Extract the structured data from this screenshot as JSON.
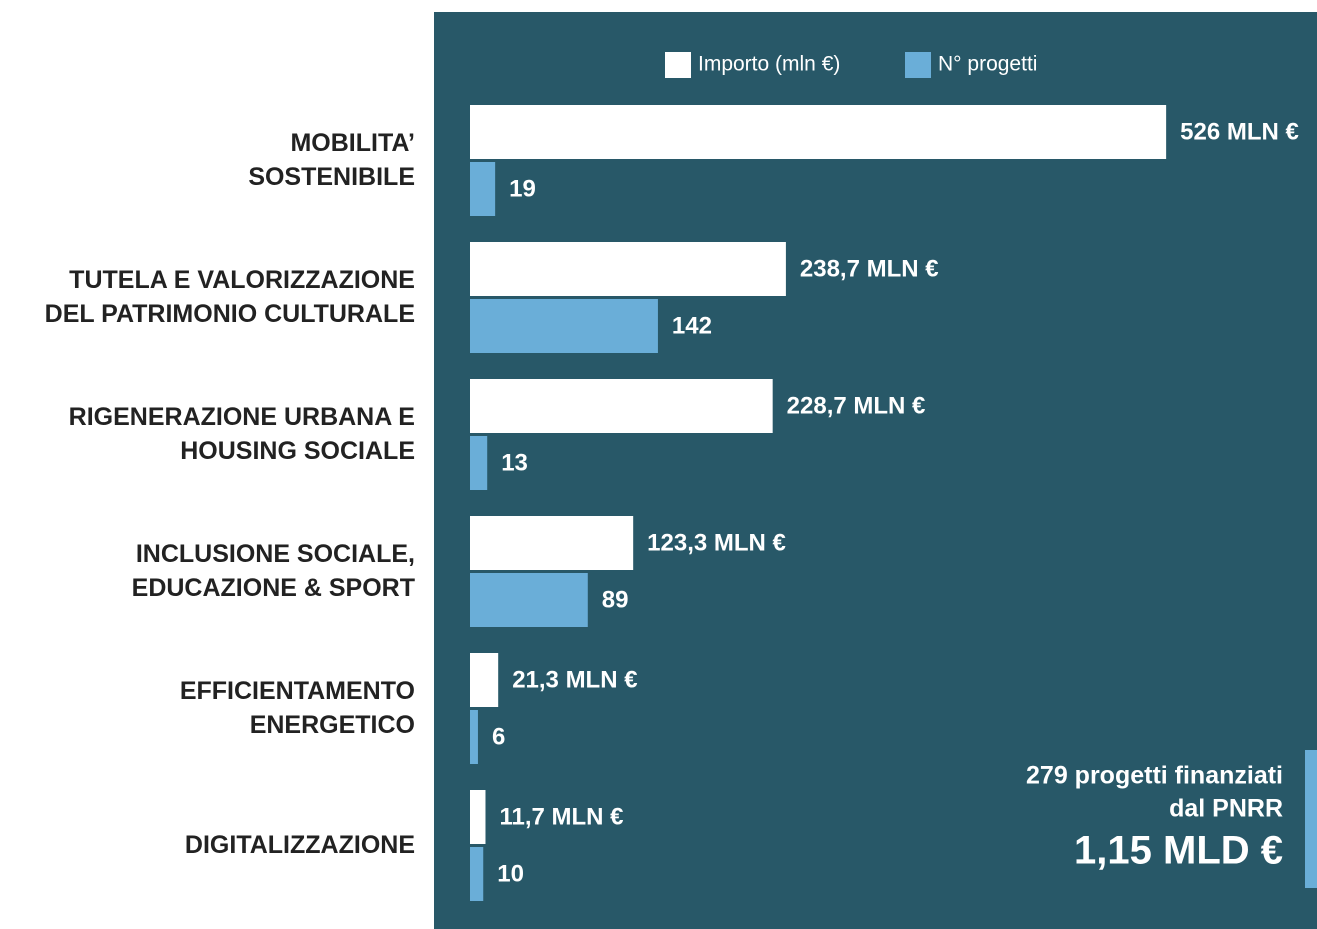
{
  "chart_data": {
    "type": "bar",
    "orientation": "horizontal",
    "categories": [
      "MOBILITA’\nSOSTENIBILE",
      "TUTELA E VALORIZZAZIONE\nDEL PATRIMONIO CULTURALE",
      "RIGENERAZIONE URBANA E\nHOUSING SOCIALE",
      "INCLUSIONE SOCIALE,\nEDUCAZIONE & SPORT",
      "EFFICIENTAMENTO\nENERGETICO",
      "DIGITALIZZAZIONE"
    ],
    "series": [
      {
        "name": "Importo (mln €)",
        "color": "#ffffff",
        "values": [
          526,
          238.7,
          228.7,
          123.3,
          21.3,
          11.7
        ],
        "value_labels": [
          "526 MLN €",
          "238,7 MLN €",
          "228,7 MLN €",
          "123,3 MLN €",
          "21,3 MLN €",
          "11,7 MLN €"
        ]
      },
      {
        "name": "N° progetti",
        "color": "#6aaed8",
        "values": [
          19,
          142,
          13,
          89,
          6,
          10
        ]
      }
    ],
    "xlim": [
      0,
      640
    ],
    "background": "#285868",
    "annotations": [
      "279 progetti finanziati",
      "dal PNRR",
      "1,15 MLD €"
    ]
  }
}
